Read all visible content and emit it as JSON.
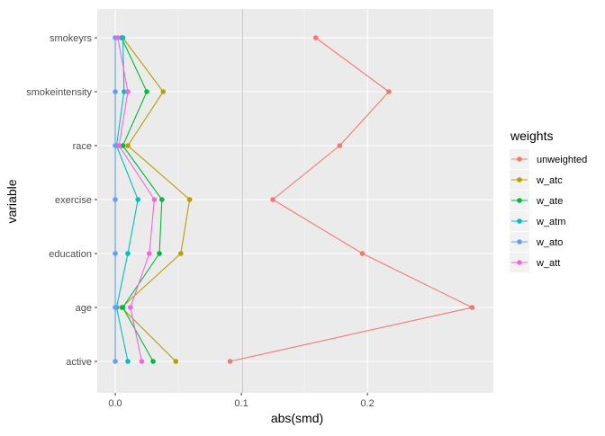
{
  "chart_data": {
    "type": "line",
    "title": "",
    "xlabel": "abs(smd)",
    "ylabel": "variable",
    "xlim": [
      -0.0143,
      0.2999
    ],
    "x_ticks": [
      0.0,
      0.1,
      0.2
    ],
    "x_tick_labels": [
      "0.0",
      "0.1",
      "0.2"
    ],
    "categories": [
      "active",
      "age",
      "education",
      "exercise",
      "race",
      "smokeintensity",
      "smokeyrs"
    ],
    "grid": true,
    "legend": {
      "title": "weights",
      "placement": "right"
    },
    "series": [
      {
        "name": "unweighted",
        "color": "#F8766D",
        "values": [
          0.091,
          0.283,
          0.196,
          0.125,
          0.178,
          0.217,
          0.159
        ]
      },
      {
        "name": "w_atc",
        "color": "#B79F00",
        "values": [
          0.048,
          0.005,
          0.052,
          0.059,
          0.01,
          0.038,
          0.006
        ]
      },
      {
        "name": "w_ate",
        "color": "#00BA38",
        "values": [
          0.03,
          0.006,
          0.035,
          0.037,
          0.006,
          0.025,
          0.005
        ]
      },
      {
        "name": "w_atm",
        "color": "#00BFC4",
        "values": [
          0.01,
          0.001,
          0.01,
          0.018,
          0.001,
          0.007,
          0.006
        ]
      },
      {
        "name": "w_ato",
        "color": "#619CFF",
        "values": [
          0.0,
          0.0,
          0.0,
          0.0,
          0.0,
          0.0,
          0.0
        ]
      },
      {
        "name": "w_att",
        "color": "#F564E3",
        "values": [
          0.021,
          0.012,
          0.027,
          0.031,
          0.003,
          0.01,
          0.002
        ]
      }
    ]
  }
}
